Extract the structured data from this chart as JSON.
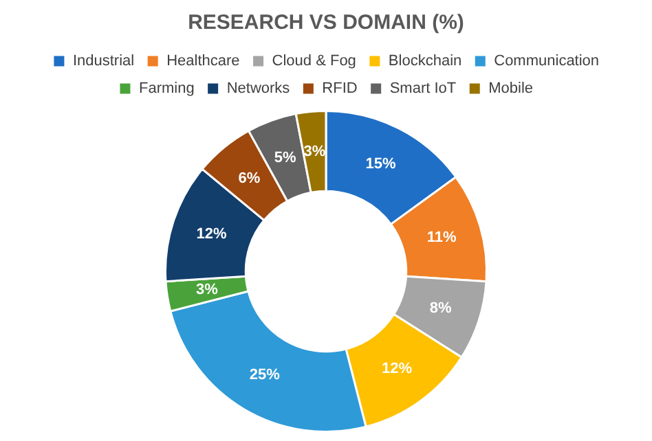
{
  "chart_data": {
    "type": "donut",
    "title": "RESEARCH VS DOMAIN (%)",
    "categories": [
      "Industrial",
      "Healthcare",
      "Cloud & Fog",
      "Blockchain",
      "Communication",
      "Farming",
      "Networks",
      "RFID",
      "Smart IoT",
      "Mobile"
    ],
    "values": [
      15,
      11,
      8,
      12,
      25,
      3,
      12,
      6,
      5,
      3
    ],
    "value_labels": [
      "15%",
      "11%",
      "8%",
      "12%",
      "25%",
      "3%",
      "12%",
      "6%",
      "5%",
      "3%"
    ],
    "colors": [
      "#1f6fc6",
      "#f07f25",
      "#a5a5a5",
      "#ffc000",
      "#2e9ad8",
      "#4aa33a",
      "#123e6c",
      "#9e480e",
      "#636363",
      "#997300"
    ],
    "legend": "top"
  }
}
